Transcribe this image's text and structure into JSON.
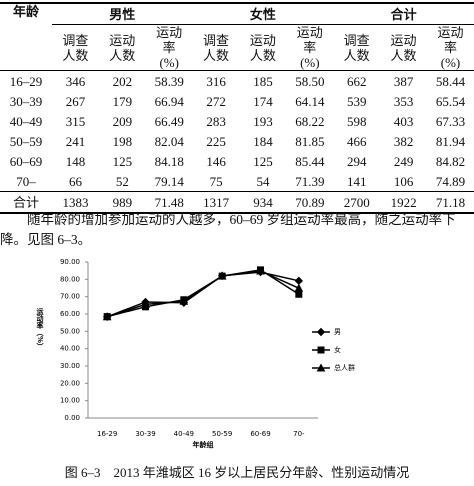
{
  "table": {
    "header": [
      "年龄",
      "男性",
      "女性",
      "合计"
    ],
    "subheader": [
      "调查人数",
      "运动人数",
      "运动率(%)"
    ],
    "rows": [
      [
        "16–29",
        "346",
        "202",
        "58.39",
        "316",
        "185",
        "58.50",
        "662",
        "387",
        "58.44"
      ],
      [
        "30–39",
        "267",
        "179",
        "66.94",
        "272",
        "174",
        "64.14",
        "539",
        "353",
        "65.54"
      ],
      [
        "40–49",
        "315",
        "209",
        "66.49",
        "283",
        "193",
        "68.22",
        "598",
        "403",
        "67.33"
      ],
      [
        "50–59",
        "241",
        "198",
        "82.04",
        "225",
        "184",
        "81.85",
        "466",
        "382",
        "81.94"
      ],
      [
        "60–69",
        "148",
        "125",
        "84.18",
        "146",
        "125",
        "85.44",
        "294",
        "249",
        "84.82"
      ],
      [
        "70–",
        "66",
        "52",
        "79.14",
        "75",
        "54",
        "71.39",
        "141",
        "106",
        "74.89"
      ],
      [
        "合计",
        "1383",
        "989",
        "71.48",
        "1317",
        "934",
        "70.89",
        "2700",
        "1922",
        "71.18"
      ]
    ]
  },
  "paragraph": "随年龄的增加参加运动的人越多，60–69 岁组运动率最高，随之运动率下降。见图 6–3。",
  "chart_data": {
    "type": "line",
    "x_label": "年龄组",
    "y_label": "运动率（%）",
    "categories": [
      "16-29",
      "30-39",
      "40-49",
      "50-59",
      "60-69",
      "70-"
    ],
    "series": [
      {
        "name": "男",
        "color": "#000000",
        "marker": "diamond",
        "values": [
          58.39,
          66.94,
          66.49,
          82.04,
          84.18,
          79.14
        ]
      },
      {
        "name": "女",
        "color": "#000000",
        "marker": "square",
        "values": [
          58.5,
          64.14,
          68.22,
          81.85,
          85.44,
          71.39
        ]
      },
      {
        "name": "总人群",
        "color": "#000000",
        "marker": "triangle",
        "values": [
          58.44,
          65.54,
          67.33,
          81.94,
          84.82,
          74.89
        ]
      }
    ],
    "ylim": [
      0,
      90
    ],
    "yticks": [
      {
        "value": 0,
        "label": "0.00"
      },
      {
        "value": 10,
        "label": "10.00"
      },
      {
        "value": 20,
        "label": "20.00"
      },
      {
        "value": 30,
        "label": "30.00"
      },
      {
        "value": 40,
        "label": "40.00"
      },
      {
        "value": 50,
        "label": "50.00"
      },
      {
        "value": 60,
        "label": "60.00"
      },
      {
        "value": 70,
        "label": "70.00"
      },
      {
        "value": 80,
        "label": "80.00"
      },
      {
        "value": 90,
        "label": "90.00"
      }
    ],
    "grid": false,
    "legend": "right"
  },
  "caption": "图 6–3　2013 年潍城区 16 岁以上居民分年龄、性别运动情况"
}
